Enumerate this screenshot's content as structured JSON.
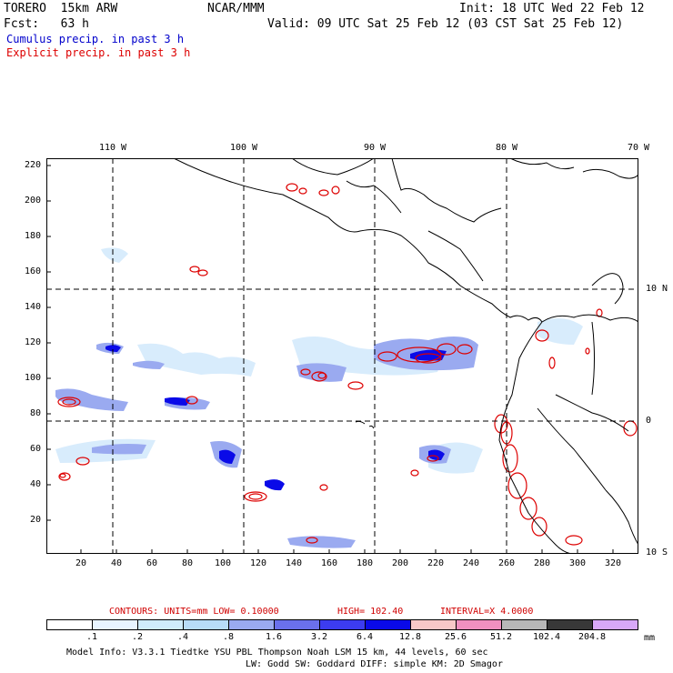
{
  "header": {
    "model": "TORERO  15km ARW",
    "org": "NCAR/MMM",
    "init": "Init: 18 UTC Wed 22 Feb 12",
    "fcst": "Fcst:   63 h",
    "valid": "Valid: 09 UTC Sat 25 Feb 12 (03 CST Sat 25 Feb 12)",
    "field1": "Cumulus precip. in past 3 h",
    "field2": "Explicit precip. in past 3 h",
    "field1_color": "#0000cc",
    "field2_color": "#dd0000"
  },
  "map": {
    "top_lon_labels": [
      "110 W",
      "100 W",
      "90 W",
      "80 W",
      "70 W"
    ],
    "right_lat_labels": [
      "10 N",
      "0",
      "10 S"
    ],
    "y_ticks": [
      "220",
      "200",
      "180",
      "160",
      "140",
      "120",
      "100",
      "80",
      "60",
      "40",
      "20"
    ],
    "x_ticks": [
      "20",
      "40",
      "60",
      "80",
      "100",
      "120",
      "140",
      "160",
      "180",
      "200",
      "220",
      "240",
      "260",
      "280",
      "300",
      "320"
    ]
  },
  "contours_line": {
    "text1": "CONTOURS:  UNITS=mm  LOW= 0.10000",
    "text2": "HIGH=  102.40",
    "text3": "INTERVAL=X  4.0000"
  },
  "legend": {
    "labels": [
      ".1",
      ".2",
      ".4",
      ".8",
      "1.6",
      "3.2",
      "6.4",
      "12.8",
      "25.6",
      "51.2",
      "102.4",
      "204.8"
    ],
    "unit": "mm",
    "colors": [
      "#ffffff",
      "#e8f4ff",
      "#d0ecfc",
      "#b8dcf8",
      "#9aaaf0",
      "#6a70ec",
      "#3c3cf0",
      "#0a0ae8",
      "#f8c8c8",
      "#f090c0",
      "#b8b8b8",
      "#383838",
      "#d8a8f8"
    ]
  },
  "footer": {
    "line1": "Model Info: V3.3.1    Tiedtke YSU PBL  Thompson     Noah LSM  15 km,   44 levels,   60 sec",
    "line2": "LW: Godd SW: Goddard DIFF: simple KM: 2D Smagor"
  }
}
